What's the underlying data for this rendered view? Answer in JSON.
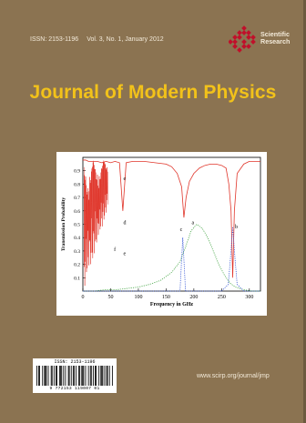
{
  "cover": {
    "issn": "ISSN: 2153-1196",
    "volume_issue": "Vol. 3, No. 1, January 2012",
    "publisher_name_line1": "Scientific",
    "publisher_name_line2": "Research",
    "title": "Journal of Modern Physics",
    "website": "www.scirp.org/journal/jmp",
    "barcode_issn": "ISSN: 2153-1196",
    "barcode_digits": "9 772153 119007   01",
    "colors": {
      "background": "#8b7351",
      "title": "#f2c21a",
      "header_text": "#f3ead9",
      "logo": "#c0102a"
    },
    "publisher_logo_icon": "scientific-research-diamond-logo"
  },
  "chart_data": {
    "type": "line",
    "xlabel": "Frequency in GHz",
    "ylabel": "Transmission Probability",
    "xlim": [
      0,
      320
    ],
    "ylim": [
      0,
      1.0
    ],
    "x_ticks": [
      0,
      50,
      100,
      150,
      200,
      250,
      300
    ],
    "y_ticks": [
      0.1,
      0.2,
      0.3,
      0.4,
      0.5,
      0.6,
      0.7,
      0.8,
      0.9
    ],
    "grid": false,
    "series": [
      {
        "color": "#e0352a",
        "style": "solid",
        "x": [
          0,
          5,
          10,
          18,
          26,
          34,
          42,
          50,
          58,
          66,
          72,
          78,
          90,
          110,
          130,
          150,
          160,
          170,
          178,
          182,
          186,
          192,
          200,
          210,
          220,
          230,
          240,
          250,
          258,
          263,
          267,
          270,
          273,
          278,
          290,
          300,
          310,
          320
        ],
        "y": [
          0.98,
          0.98,
          0.97,
          0.97,
          0.97,
          0.96,
          0.97,
          0.96,
          0.97,
          0.96,
          0.6,
          0.96,
          0.97,
          0.97,
          0.96,
          0.95,
          0.93,
          0.88,
          0.78,
          0.55,
          0.7,
          0.82,
          0.88,
          0.92,
          0.94,
          0.95,
          0.95,
          0.94,
          0.92,
          0.8,
          0.6,
          0.1,
          0.6,
          0.88,
          0.95,
          0.97,
          0.97,
          0.97
        ]
      },
      {
        "color": "#4aa84a",
        "style": "dotted",
        "x": [
          0,
          20,
          40,
          60,
          80,
          100,
          120,
          140,
          160,
          175,
          185,
          195,
          205,
          215,
          225,
          235,
          245,
          255,
          265,
          275,
          290,
          305,
          320
        ],
        "y": [
          0.0,
          0.0,
          0.01,
          0.01,
          0.02,
          0.03,
          0.05,
          0.08,
          0.14,
          0.22,
          0.33,
          0.45,
          0.5,
          0.47,
          0.4,
          0.3,
          0.2,
          0.12,
          0.06,
          0.03,
          0.01,
          0.0,
          0.0
        ]
      },
      {
        "color": "#3b5bd6",
        "style": "dotted",
        "x": [
          0,
          50,
          100,
          150,
          175,
          180,
          185,
          200,
          250,
          262,
          266,
          270,
          274,
          278,
          290,
          320
        ],
        "y": [
          0.0,
          0.0,
          0.0,
          0.0,
          0.0,
          0.4,
          0.0,
          0.0,
          0.0,
          0.05,
          0.25,
          0.48,
          0.25,
          0.05,
          0.0,
          0.0
        ]
      }
    ],
    "annotations": [
      {
        "label": "a",
        "x": 196,
        "y": 0.5
      },
      {
        "label": "b",
        "x": 274,
        "y": 0.47
      },
      {
        "label": "c",
        "x": 175,
        "y": 0.45
      },
      {
        "label": "d",
        "x": 73,
        "y": 0.5
      },
      {
        "label": "e",
        "x": 73,
        "y": 0.83
      },
      {
        "label": "e",
        "x": 73,
        "y": 0.27
      },
      {
        "label": "f",
        "x": 56,
        "y": 0.3
      }
    ]
  }
}
